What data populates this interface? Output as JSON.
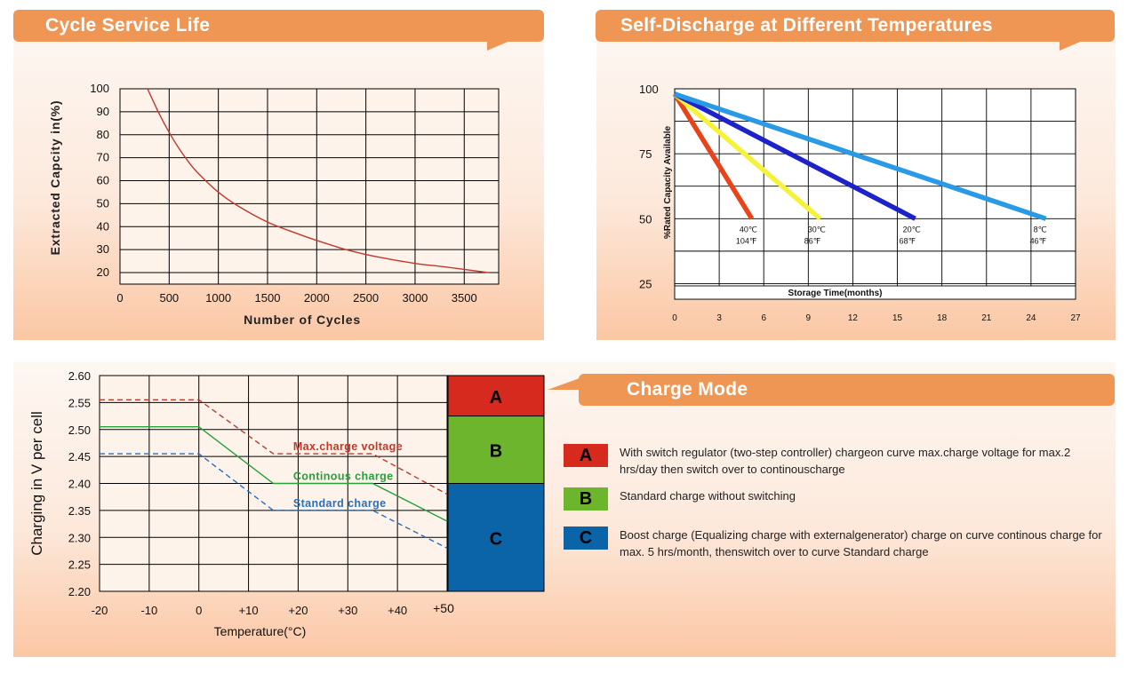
{
  "panels": {
    "cycle_title": "Cycle Service Life",
    "self_discharge_title": "Self-Discharge at Different Temperatures",
    "charge_mode_title": "Charge Mode"
  },
  "chart_data": [
    {
      "id": "cycle_service_life",
      "type": "line",
      "title": "Cycle Service Life",
      "xlabel": "Number of Cycles",
      "ylabel": "Extracted Capcity  in(%)",
      "xticks": [
        0,
        500,
        1000,
        1500,
        2000,
        2500,
        3000,
        3500
      ],
      "yticks": [
        20,
        30,
        40,
        50,
        60,
        70,
        80,
        90,
        100
      ],
      "xlim": [
        0,
        3850
      ],
      "ylim": [
        15,
        100
      ],
      "grid": true,
      "series": [
        {
          "name": "capacity",
          "color": "#c0392b",
          "x": [
            280,
            400,
            500,
            600,
            700,
            800,
            1000,
            1200,
            1500,
            1800,
            2000,
            2300,
            2600,
            3000,
            3300,
            3750
          ],
          "y": [
            100,
            89,
            81,
            74,
            68,
            63,
            55,
            49,
            42,
            37,
            34,
            30,
            27,
            24,
            22.5,
            20
          ]
        }
      ]
    },
    {
      "id": "self_discharge",
      "type": "line",
      "title": "Self-Discharge at Different Temperatures",
      "xlabel": "Storage Time(months)",
      "ylabel": "%Rated Capacity Available",
      "xticks": [
        0,
        3,
        6,
        9,
        12,
        15,
        18,
        21,
        24,
        27
      ],
      "yticks": [
        25,
        50,
        75,
        100
      ],
      "xlim": [
        0,
        27
      ],
      "ylim": [
        19,
        100
      ],
      "grid": true,
      "series": [
        {
          "name": "40℃ 104℉",
          "label_c": "40℃",
          "label_f": "104℉",
          "color": "#e8441a",
          "x": [
            0,
            5.2
          ],
          "y": [
            98,
            50
          ]
        },
        {
          "name": "30℃ 86℉",
          "label_c": "30℃",
          "label_f": "86℉",
          "color": "#f6f23a",
          "x": [
            0,
            9.8
          ],
          "y": [
            98,
            50
          ]
        },
        {
          "name": "20℃ 68℉",
          "label_c": "20℃",
          "label_f": "68℉",
          "color": "#1d23c8",
          "x": [
            0,
            16.2
          ],
          "y": [
            98,
            50
          ]
        },
        {
          "name": "8℃ 46℉",
          "label_c": "8℃",
          "label_f": "46℉",
          "color": "#2b9ae6",
          "x": [
            0,
            25.0
          ],
          "y": [
            98,
            50
          ]
        }
      ]
    },
    {
      "id": "charge_mode",
      "type": "line",
      "title": "Charge Mode",
      "xlabel": "Temperature(°C)",
      "ylabel": "Charging in V per cell",
      "xticks": [
        -20,
        -10,
        0,
        10,
        20,
        30,
        40,
        50
      ],
      "xtick_labels": [
        "-20",
        "-10",
        "0",
        "+10",
        "+20",
        "+30",
        "+40",
        "+50"
      ],
      "yticks": [
        2.2,
        2.25,
        2.3,
        2.35,
        2.4,
        2.45,
        2.5,
        2.55,
        2.6
      ],
      "ytick_labels": [
        "2.20",
        "2.25",
        "2.30",
        "2.35",
        "2.40",
        "2.45",
        "2.50",
        "2.55",
        "2.60"
      ],
      "xlim": [
        -20,
        50
      ],
      "ylim": [
        2.2,
        2.6
      ],
      "grid": true,
      "series": [
        {
          "name": "Max.charge voltage",
          "color": "#c0392b",
          "dashed": true,
          "x": [
            -20,
            0,
            15,
            35,
            50
          ],
          "y": [
            2.555,
            2.555,
            2.455,
            2.455,
            2.38
          ]
        },
        {
          "name": "Continous charge",
          "color": "#27a03c",
          "dashed": false,
          "x": [
            -20,
            0,
            15,
            35,
            50
          ],
          "y": [
            2.505,
            2.505,
            2.4,
            2.4,
            2.33
          ]
        },
        {
          "name": "Standard charge",
          "color": "#2f6fb5",
          "dashed": true,
          "x": [
            -20,
            0,
            15,
            35,
            50
          ],
          "y": [
            2.455,
            2.455,
            2.35,
            2.35,
            2.28
          ]
        }
      ],
      "series_labels": [
        "Max.charge voltage",
        "Continous charge",
        "Standard charge"
      ],
      "zones": [
        {
          "label": "A",
          "color": "#d62a1e",
          "from": 2.525,
          "to": 2.6
        },
        {
          "label": "B",
          "color": "#6cb52d",
          "from": 2.4,
          "to": 2.525
        },
        {
          "label": "C",
          "color": "#0b63a8",
          "from": 2.2,
          "to": 2.4
        }
      ]
    }
  ],
  "charge_legend": [
    {
      "letter": "A",
      "color": "#d62a1e",
      "text": "With switch regulator (two-step controller) chargeon curve max.charge voltage for max.2 hrs/day  then switch over to continouscharge"
    },
    {
      "letter": "B",
      "color": "#6cb52d",
      "text": "Standard charge without switching"
    },
    {
      "letter": "C",
      "color": "#0b63a8",
      "text": "Boost charge (Equalizing charge with externalgenerator) charge on curve continous charge for max. 5 hrs/month, thenswitch over to curve Standard charge"
    }
  ]
}
